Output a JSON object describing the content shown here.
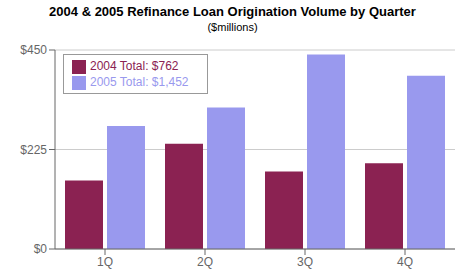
{
  "chart_data": {
    "type": "bar",
    "title": "2004 & 2005 Refinance Loan Origination Volume by Quarter",
    "subtitle": "($millions)",
    "categories": [
      "1Q",
      "2Q",
      "3Q",
      "4Q"
    ],
    "series": [
      {
        "name": "2004 Total: $762",
        "color": "#8B2252",
        "values": [
          155,
          238,
          175,
          194
        ]
      },
      {
        "name": "2005 Total:  $1,452",
        "color": "#9999EE",
        "values": [
          278,
          320,
          440,
          392
        ]
      }
    ],
    "ylim": [
      0,
      450
    ],
    "yticks": [
      {
        "value": 0,
        "label": "$0"
      },
      {
        "value": 225,
        "label": "$225"
      },
      {
        "value": 450,
        "label": "$450"
      }
    ],
    "grid": true,
    "legend": "upper left"
  }
}
